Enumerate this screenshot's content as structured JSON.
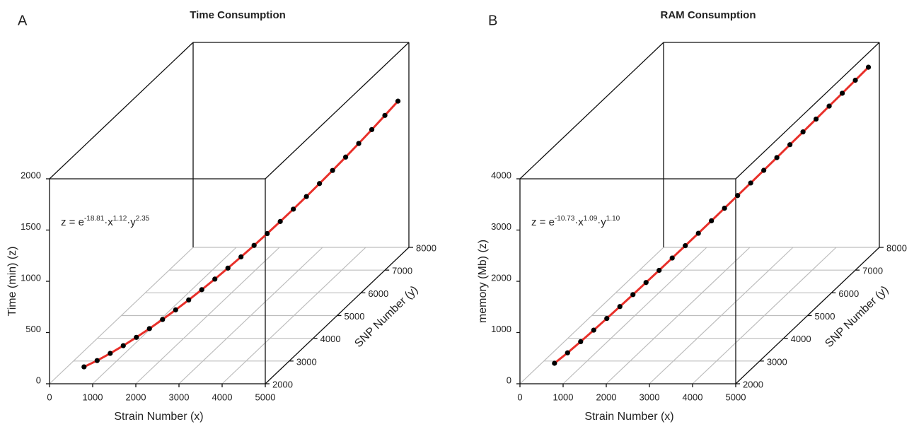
{
  "chart_data": [
    {
      "type": "scatter3d",
      "panel_label": "A",
      "title": "Time Consumption",
      "x_label": "Strain Number (x)",
      "y_label": "SNP Number (y)",
      "z_label": "Time (min) (z)",
      "equation": {
        "base": "z = e",
        "exp1": "-18.81",
        "x": "·x",
        "exp2": "1.12",
        "y": "·y",
        "exp3": "2.35"
      },
      "xlim": [
        0,
        5000
      ],
      "ylim": [
        2000,
        8000
      ],
      "zlim": [
        0,
        2000
      ],
      "xticks": [
        0,
        1000,
        2000,
        3000,
        4000,
        5000
      ],
      "yticks": [
        2000,
        3000,
        4000,
        5000,
        6000,
        7000,
        8000
      ],
      "zticks": [
        0,
        500,
        1000,
        1500,
        2000
      ],
      "fit_color": "#e8302a",
      "series": [
        {
          "color": "#000000",
          "x": [
            800,
            970,
            1140,
            1310,
            1480,
            1650,
            1820,
            1990,
            2160,
            2330,
            2500,
            2670,
            2840,
            3010,
            3180,
            3350,
            3520,
            3690,
            3860,
            4030,
            4200,
            4370,
            4540,
            4710,
            4880
          ],
          "y": [
            2000,
            2240,
            2480,
            2720,
            2960,
            3200,
            3440,
            3680,
            3920,
            4160,
            4400,
            4640,
            4880,
            5120,
            5360,
            5600,
            5840,
            6080,
            6320,
            6560,
            6800,
            7040,
            7280,
            7520,
            7760
          ],
          "z": [
            165,
            173,
            190,
            212,
            240,
            272,
            308,
            348,
            392,
            439,
            489,
            543,
            599,
            658,
            720,
            785,
            852,
            922,
            995,
            1070,
            1147,
            1227,
            1309,
            1394,
            1480
          ]
        }
      ]
    },
    {
      "type": "scatter3d",
      "panel_label": "B",
      "title": "RAM Consumption",
      "x_label": "Strain Number (x)",
      "y_label": "SNP Number (y)",
      "z_label": "memory (Mb) (z)",
      "equation": {
        "base": "z = e",
        "exp1": "-10.73",
        "x": "·x",
        "exp2": "1.09",
        "y": "·y",
        "exp3": "1.10"
      },
      "xlim": [
        0,
        5000
      ],
      "ylim": [
        2000,
        8000
      ],
      "zlim": [
        0,
        4000
      ],
      "xticks": [
        0,
        1000,
        2000,
        3000,
        4000,
        5000
      ],
      "yticks": [
        2000,
        3000,
        4000,
        5000,
        6000,
        7000,
        8000
      ],
      "zticks": [
        0,
        1000,
        2000,
        3000,
        4000
      ],
      "fit_color": "#e8302a",
      "series": [
        {
          "color": "#000000",
          "x": [
            800,
            970,
            1140,
            1310,
            1480,
            1650,
            1820,
            1990,
            2160,
            2330,
            2500,
            2670,
            2840,
            3010,
            3180,
            3350,
            3520,
            3690,
            3860,
            4030,
            4200,
            4370,
            4540,
            4710,
            4880
          ],
          "y": [
            2000,
            2240,
            2480,
            2720,
            2960,
            3200,
            3440,
            3680,
            3920,
            4160,
            4400,
            4640,
            4880,
            5120,
            5360,
            5600,
            5840,
            6080,
            6320,
            6560,
            6800,
            7040,
            7280,
            7520,
            7760
          ],
          "z": [
            400,
            498,
            609,
            727,
            849,
            974,
            1101,
            1231,
            1362,
            1496,
            1630,
            1766,
            1903,
            2042,
            2182,
            2321,
            2462,
            2604,
            2749,
            2892,
            3037,
            3183,
            3327,
            3475,
            3622
          ]
        }
      ]
    }
  ]
}
